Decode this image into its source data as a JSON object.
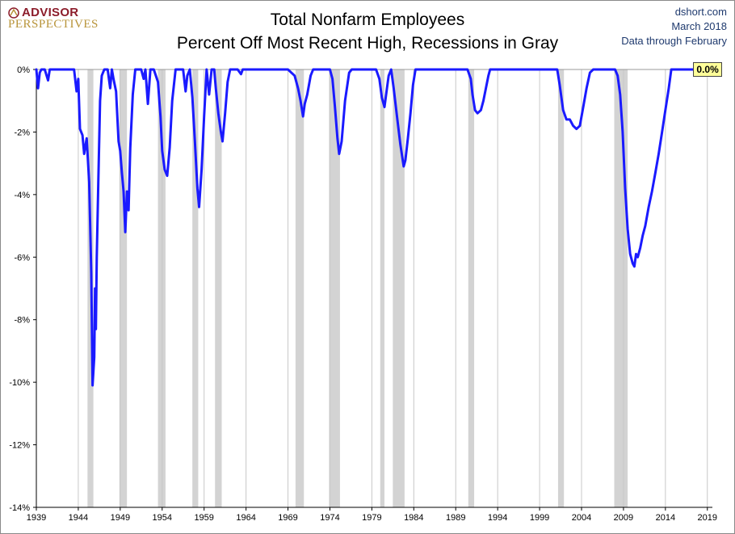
{
  "header": {
    "logo_top": "ADVISOR",
    "logo_bottom": "PERSPECTIVES",
    "title_line1": "Total Nonfarm Employees",
    "title_line2": "Percent Off Most Recent High, Recessions in Gray",
    "source_site": "dshort.com",
    "source_date": "March 2018",
    "source_note": "Data through February"
  },
  "colors": {
    "line": "#1a1aff",
    "recession": "#d3d3d3",
    "grid": "#c8c8c8",
    "label_bg": "#ffff99",
    "logo_red": "#8c1d2b",
    "logo_gold": "#b8943a"
  },
  "chart_data": {
    "type": "line",
    "title": "Total Nonfarm Employees",
    "subtitle": "Percent Off Most Recent High, Recessions in Gray",
    "xlabel": "",
    "ylabel": "",
    "xlim": [
      1939,
      2019.6
    ],
    "ylim": [
      -14,
      0
    ],
    "grid": "vertical",
    "y_ticks": [
      0,
      -2,
      -4,
      -6,
      -8,
      -10,
      -12,
      -14
    ],
    "y_tick_labels": [
      "0%",
      "-2%",
      "-4%",
      "-6%",
      "-8%",
      "-10%",
      "-12%",
      "-14%"
    ],
    "x_ticks": [
      1939,
      1944,
      1949,
      1954,
      1959,
      1964,
      1969,
      1974,
      1979,
      1984,
      1989,
      1994,
      1999,
      2004,
      2009,
      2014,
      2019
    ],
    "x_tick_labels": [
      "1939",
      "1944",
      "1949",
      "1954",
      "1959",
      "1964",
      "1969",
      "1974",
      "1979",
      "1984",
      "1989",
      "1994",
      "1999",
      "2004",
      "2009",
      "2014",
      "2019"
    ],
    "recessions": [
      [
        1945.1,
        1945.8
      ],
      [
        1948.9,
        1949.8
      ],
      [
        1953.5,
        1954.4
      ],
      [
        1957.6,
        1958.3
      ],
      [
        1960.3,
        1961.1
      ],
      [
        1969.9,
        1970.9
      ],
      [
        1973.9,
        1975.2
      ],
      [
        1980.0,
        1980.5
      ],
      [
        1981.5,
        1982.9
      ],
      [
        1990.5,
        1991.2
      ],
      [
        2001.2,
        2001.9
      ],
      [
        2007.9,
        2009.5
      ]
    ],
    "series": [
      {
        "values": [
          [
            1939.0,
            0
          ],
          [
            1939.2,
            -0.6
          ],
          [
            1939.4,
            -0.1
          ],
          [
            1939.6,
            0
          ],
          [
            1940.0,
            0
          ],
          [
            1940.4,
            -0.35
          ],
          [
            1940.6,
            0
          ],
          [
            1941.0,
            0
          ],
          [
            1943.5,
            0
          ],
          [
            1943.8,
            -0.7
          ],
          [
            1944.0,
            -0.3
          ],
          [
            1944.2,
            -1.9
          ],
          [
            1944.5,
            -2.1
          ],
          [
            1944.7,
            -2.7
          ],
          [
            1945.0,
            -2.2
          ],
          [
            1945.3,
            -3.6
          ],
          [
            1945.55,
            -6.5
          ],
          [
            1945.7,
            -10.1
          ],
          [
            1945.9,
            -9.2
          ],
          [
            1946.0,
            -7.0
          ],
          [
            1946.1,
            -8.3
          ],
          [
            1946.2,
            -6.0
          ],
          [
            1946.4,
            -3.5
          ],
          [
            1946.6,
            -1.0
          ],
          [
            1946.8,
            -0.2
          ],
          [
            1947.1,
            0
          ],
          [
            1947.5,
            0
          ],
          [
            1947.8,
            -0.6
          ],
          [
            1948.0,
            0
          ],
          [
            1948.2,
            -0.3
          ],
          [
            1948.5,
            -0.7
          ],
          [
            1948.8,
            -2.3
          ],
          [
            1949.0,
            -2.6
          ],
          [
            1949.2,
            -3.3
          ],
          [
            1949.4,
            -3.9
          ],
          [
            1949.6,
            -5.2
          ],
          [
            1949.8,
            -3.9
          ],
          [
            1950.0,
            -4.5
          ],
          [
            1950.2,
            -2.5
          ],
          [
            1950.5,
            -0.8
          ],
          [
            1950.8,
            0
          ],
          [
            1951.5,
            0
          ],
          [
            1951.8,
            -0.3
          ],
          [
            1952.0,
            0
          ],
          [
            1952.3,
            -1.1
          ],
          [
            1952.6,
            0
          ],
          [
            1953.0,
            0
          ],
          [
            1953.5,
            -0.4
          ],
          [
            1953.8,
            -1.5
          ],
          [
            1954.0,
            -2.6
          ],
          [
            1954.3,
            -3.2
          ],
          [
            1954.6,
            -3.4
          ],
          [
            1954.9,
            -2.5
          ],
          [
            1955.2,
            -1.0
          ],
          [
            1955.6,
            0
          ],
          [
            1956.5,
            0
          ],
          [
            1956.8,
            -0.7
          ],
          [
            1957.0,
            -0.2
          ],
          [
            1957.3,
            0
          ],
          [
            1957.6,
            -0.9
          ],
          [
            1957.9,
            -2.3
          ],
          [
            1958.2,
            -3.8
          ],
          [
            1958.4,
            -4.4
          ],
          [
            1958.7,
            -3.2
          ],
          [
            1959.0,
            -1.5
          ],
          [
            1959.3,
            0
          ],
          [
            1959.6,
            -0.8
          ],
          [
            1959.9,
            0
          ],
          [
            1960.2,
            0
          ],
          [
            1960.4,
            -0.6
          ],
          [
            1960.7,
            -1.4
          ],
          [
            1961.0,
            -2.0
          ],
          [
            1961.2,
            -2.3
          ],
          [
            1961.5,
            -1.4
          ],
          [
            1961.8,
            -0.4
          ],
          [
            1962.1,
            0
          ],
          [
            1963.0,
            0
          ],
          [
            1963.4,
            -0.15
          ],
          [
            1963.6,
            0
          ],
          [
            1969.0,
            0
          ],
          [
            1969.8,
            -0.2
          ],
          [
            1970.2,
            -0.6
          ],
          [
            1970.5,
            -1.0
          ],
          [
            1970.8,
            -1.5
          ],
          [
            1971.0,
            -1.1
          ],
          [
            1971.3,
            -0.8
          ],
          [
            1971.7,
            -0.2
          ],
          [
            1972.0,
            0
          ],
          [
            1974.0,
            0
          ],
          [
            1974.3,
            -0.3
          ],
          [
            1974.6,
            -1.2
          ],
          [
            1974.9,
            -2.2
          ],
          [
            1975.1,
            -2.7
          ],
          [
            1975.4,
            -2.3
          ],
          [
            1975.8,
            -1.0
          ],
          [
            1976.3,
            -0.1
          ],
          [
            1976.6,
            0
          ],
          [
            1979.5,
            0
          ],
          [
            1979.9,
            -0.3
          ],
          [
            1980.2,
            -0.9
          ],
          [
            1980.5,
            -1.2
          ],
          [
            1980.8,
            -0.6
          ],
          [
            1981.0,
            -0.2
          ],
          [
            1981.3,
            0
          ],
          [
            1981.6,
            -0.6
          ],
          [
            1982.0,
            -1.5
          ],
          [
            1982.4,
            -2.4
          ],
          [
            1982.8,
            -3.1
          ],
          [
            1983.0,
            -2.9
          ],
          [
            1983.3,
            -2.2
          ],
          [
            1983.6,
            -1.4
          ],
          [
            1983.9,
            -0.5
          ],
          [
            1984.2,
            0
          ],
          [
            1990.4,
            0
          ],
          [
            1990.8,
            -0.3
          ],
          [
            1991.0,
            -0.8
          ],
          [
            1991.3,
            -1.3
          ],
          [
            1991.6,
            -1.4
          ],
          [
            1992.0,
            -1.3
          ],
          [
            1992.3,
            -1.0
          ],
          [
            1992.6,
            -0.6
          ],
          [
            1992.9,
            -0.2
          ],
          [
            1993.1,
            0
          ],
          [
            2001.1,
            0
          ],
          [
            2001.4,
            -0.5
          ],
          [
            2001.8,
            -1.3
          ],
          [
            2002.2,
            -1.6
          ],
          [
            2002.6,
            -1.6
          ],
          [
            2003.0,
            -1.8
          ],
          [
            2003.4,
            -1.9
          ],
          [
            2003.8,
            -1.8
          ],
          [
            2004.2,
            -1.2
          ],
          [
            2004.6,
            -0.6
          ],
          [
            2005.0,
            -0.1
          ],
          [
            2005.4,
            0
          ],
          [
            2008.0,
            0
          ],
          [
            2008.3,
            -0.2
          ],
          [
            2008.6,
            -0.8
          ],
          [
            2008.9,
            -2.0
          ],
          [
            2009.2,
            -3.8
          ],
          [
            2009.5,
            -5.1
          ],
          [
            2009.8,
            -5.9
          ],
          [
            2010.1,
            -6.2
          ],
          [
            2010.3,
            -6.3
          ],
          [
            2010.5,
            -5.9
          ],
          [
            2010.7,
            -6.0
          ],
          [
            2011.0,
            -5.7
          ],
          [
            2011.3,
            -5.3
          ],
          [
            2011.6,
            -5.0
          ],
          [
            2012.0,
            -4.4
          ],
          [
            2012.4,
            -3.9
          ],
          [
            2012.8,
            -3.3
          ],
          [
            2013.2,
            -2.7
          ],
          [
            2013.6,
            -2.0
          ],
          [
            2014.0,
            -1.3
          ],
          [
            2014.4,
            -0.6
          ],
          [
            2014.7,
            0
          ],
          [
            2018.1,
            0
          ]
        ]
      }
    ],
    "end_label": "0.0%"
  }
}
